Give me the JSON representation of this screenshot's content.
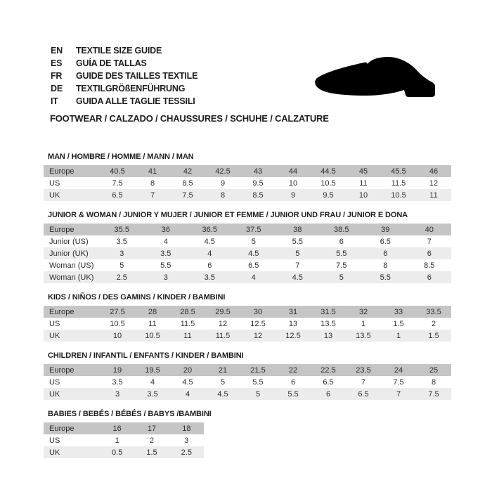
{
  "header": {
    "languages": [
      {
        "code": "EN",
        "text": "TEXTILE SIZE GUIDE"
      },
      {
        "code": "ES",
        "text": "GUÍA DE TALLAS"
      },
      {
        "code": "FR",
        "text": "GUIDE DES TAILLES TEXTILE"
      },
      {
        "code": "DE",
        "text": "TEXTILGRÖßENFÜHRUNG"
      },
      {
        "code": "IT",
        "text": "GUIDA ALLE TAGLIE TESSILI"
      }
    ],
    "category_line": "FOOTWEAR / CALZADO / CHAUSSURES / SCHUHE / CALZATURE"
  },
  "icons": {
    "shoe": "dress-shoe-silhouette"
  },
  "colors": {
    "table_header_bg": "#c5c5c5",
    "row_alt_bg": "#ececec",
    "text": "#1d1d1d",
    "shoe_fill": "#000000"
  },
  "tables": [
    {
      "title": "MAN / HOMBRE / HOMME / MANN / MAN",
      "rows": [
        {
          "label": "Europe",
          "values": [
            "40.5",
            "41",
            "42",
            "42.5",
            "43",
            "44",
            "44.5",
            "45",
            "45.5",
            "46"
          ]
        },
        {
          "label": "US",
          "values": [
            "7.5",
            "8",
            "8.5",
            "9",
            "9.5",
            "10",
            "10.5",
            "11",
            "11.5",
            "12"
          ]
        },
        {
          "label": "UK",
          "values": [
            "6.5",
            "7",
            "7.5",
            "8",
            "8.5",
            "9",
            "9.5",
            "10",
            "10.5",
            "11"
          ]
        }
      ]
    },
    {
      "title": "JUNIOR & WOMAN / JUNIOR Y MUJER / JUNIOR ET FEMME / JUNIOR UND FRAU / JUNIOR E DONA",
      "rows": [
        {
          "label": "Europe",
          "values": [
            "35.5",
            "36",
            "36.5",
            "37.5",
            "38",
            "38.5",
            "39",
            "40"
          ]
        },
        {
          "label": "Junior (US)",
          "values": [
            "3.5",
            "4",
            "4.5",
            "5",
            "5.5",
            "6",
            "6.5",
            "7"
          ]
        },
        {
          "label": "Junior (UK)",
          "values": [
            "3",
            "3.5",
            "4",
            "4.5",
            "5",
            "5.5",
            "6",
            "6"
          ]
        },
        {
          "label": "Woman (US)",
          "values": [
            "5",
            "5.5",
            "6",
            "6.5",
            "7",
            "7.5",
            "8",
            "8.5"
          ]
        },
        {
          "label": "Woman (UK)",
          "values": [
            "2.5",
            "3",
            "3.5",
            "4",
            "4.5",
            "5",
            "5.5",
            "6"
          ]
        }
      ]
    },
    {
      "title": "KIDS / NIÑOS / DES GAMINS / KINDER / BAMBINI",
      "rows": [
        {
          "label": "Europe",
          "values": [
            "27.5",
            "28",
            "28.5",
            "29.5",
            "30",
            "31",
            "31.5",
            "32",
            "33",
            "33.5"
          ]
        },
        {
          "label": "US",
          "values": [
            "10.5",
            "11",
            "11.5",
            "12",
            "12.5",
            "13",
            "13.5",
            "1",
            "1.5",
            "2"
          ]
        },
        {
          "label": "UK",
          "values": [
            "10",
            "10.5",
            "11",
            "11.5",
            "12",
            "12.5",
            "13",
            "13.5",
            "1",
            "1.5"
          ]
        }
      ]
    },
    {
      "title": "CHILDREN / INFANTIL / ENFANTS / KINDER / BAMBINI",
      "rows": [
        {
          "label": "Europe",
          "values": [
            "19",
            "19.5",
            "20",
            "21",
            "21.5",
            "22",
            "22.5",
            "23.5",
            "24",
            "25"
          ]
        },
        {
          "label": "US",
          "values": [
            "3.5",
            "4",
            "4.5",
            "5",
            "5.5",
            "6",
            "6.5",
            "7",
            "7.5",
            "8"
          ]
        },
        {
          "label": "UK",
          "values": [
            "3",
            "3.5",
            "4",
            "4.5",
            "5",
            "5.5",
            "6",
            "6.5",
            "7",
            "7.5"
          ]
        }
      ]
    },
    {
      "title": "BABIES / BEBÉS / BÉBÉS / BABYS /BAMBINI",
      "rows": [
        {
          "label": "Europe",
          "values": [
            "16",
            "17",
            "18"
          ]
        },
        {
          "label": "US",
          "values": [
            "1",
            "2",
            "3"
          ]
        },
        {
          "label": "UK",
          "values": [
            "0.5",
            "1.5",
            "2.5"
          ]
        }
      ]
    }
  ]
}
